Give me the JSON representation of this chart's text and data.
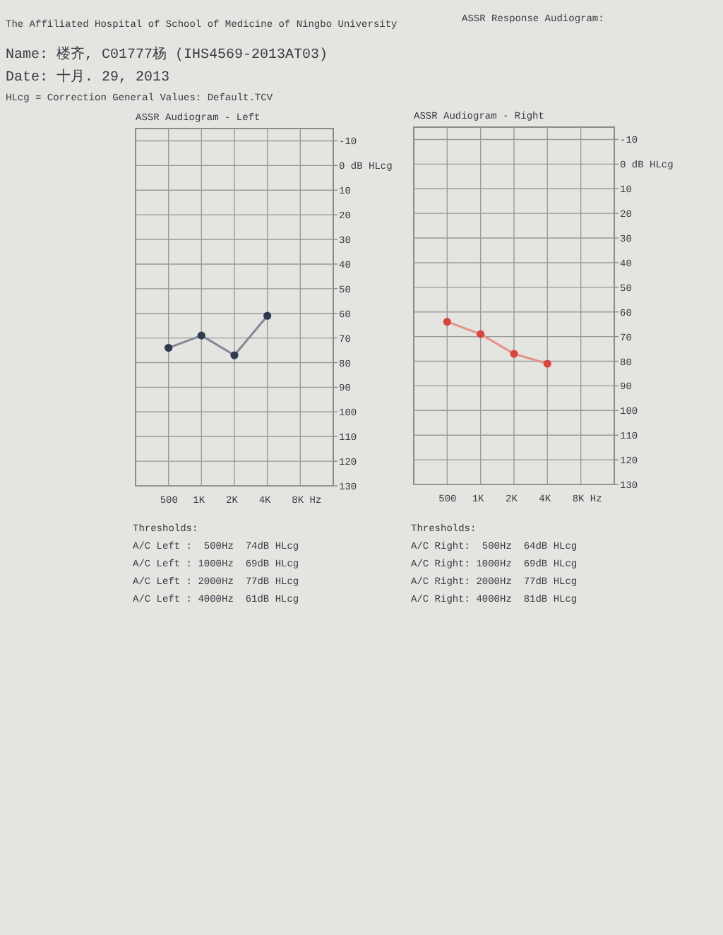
{
  "chart_data": [
    {
      "type": "line",
      "title": "ASSR Audiogram - Left",
      "categories": [
        "500",
        "1K",
        "2K",
        "4K",
        "8K Hz"
      ],
      "series": [
        {
          "color": "#2f3a4f",
          "values": [
            74,
            69,
            77,
            61,
            null
          ]
        }
      ],
      "ylim": [
        130,
        -15
      ],
      "yticks": [
        -10,
        {
          "value": 0,
          "label": "0 dB HLcg"
        },
        10,
        20,
        30,
        40,
        50,
        60,
        70,
        80,
        90,
        100,
        110,
        120,
        130
      ],
      "grid": true,
      "marker": "circle",
      "line_style": "solid",
      "annotations": [
        "The Affiliated Hospital of School of Medicine of Ningbo University",
        "ASSR Response Audiogram:",
        "Name: 楼齐, C01777杨 (IHS4569-2013AT03)",
        "Date: 十月. 29, 2013",
        "HLcg = Correction General Values: Default.TCV",
        "Thresholds:",
        "A/C Left :  500Hz  74dB HLcg",
        "A/C Left : 1000Hz  69dB HLcg",
        "A/C Left : 2000Hz  77dB HLcg",
        "A/C Left : 4000Hz  61dB HLcg"
      ]
    },
    {
      "type": "line",
      "title": "ASSR Audiogram - Right",
      "categories": [
        "500",
        "1K",
        "2K",
        "4K",
        "8K Hz"
      ],
      "series": [
        {
          "color": "#d9463f",
          "values": [
            64,
            69,
            77,
            81,
            null
          ]
        }
      ],
      "ylim": [
        130,
        -15
      ],
      "yticks": [
        -10,
        {
          "value": 0,
          "label": "0 dB HLcg"
        },
        10,
        20,
        30,
        40,
        50,
        60,
        70,
        80,
        90,
        100,
        110,
        120,
        130
      ],
      "grid": true,
      "marker": "circle",
      "line_style": "solid",
      "annotations": [
        "Thresholds:",
        "A/C Right:  500Hz  64dB HLcg",
        "A/C Right: 1000Hz  69dB HLcg",
        "A/C Right: 2000Hz  77dB HLcg",
        "A/C Right: 4000Hz  81dB HLcg"
      ]
    }
  ]
}
